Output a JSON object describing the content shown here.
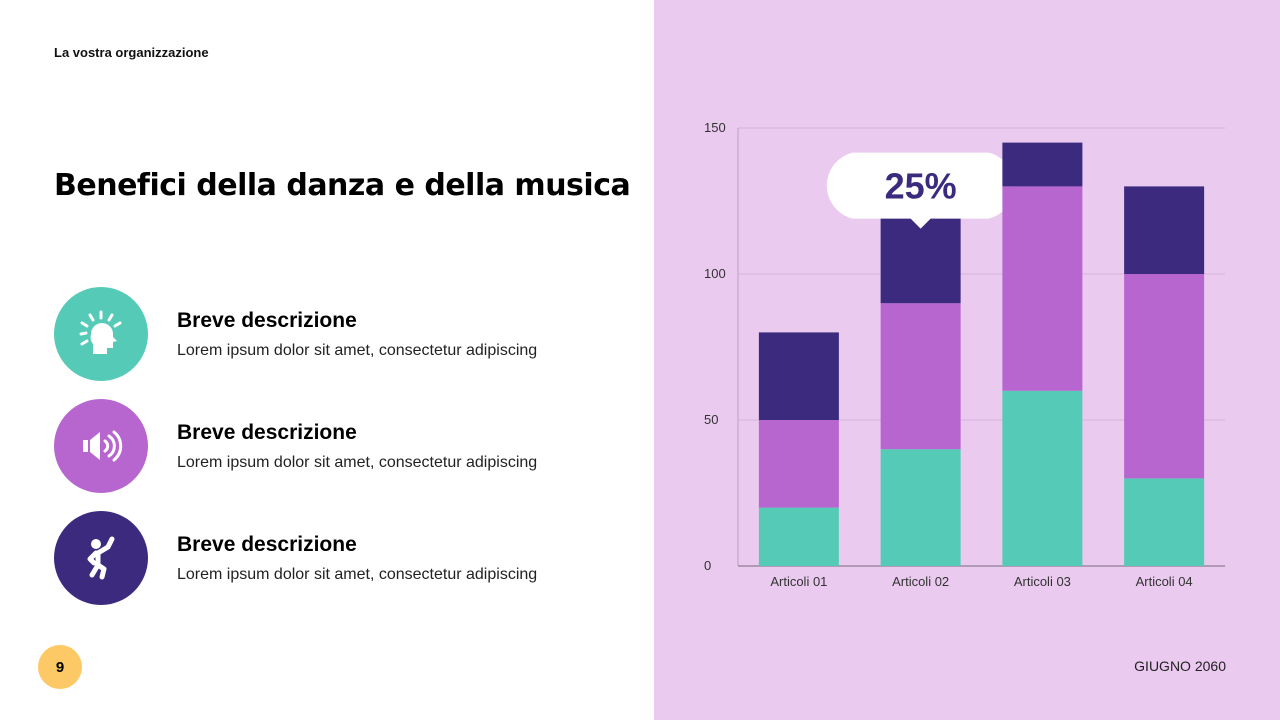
{
  "header": {
    "org": "La vostra organizzazione",
    "title": "Benefici della danza e della musica"
  },
  "items": [
    {
      "heading": "Breve descrizione",
      "text": "Lorem ipsum dolor sit amet, consectetur adipiscing",
      "icon": "head-lightbulb-icon",
      "color": "#55cbb7"
    },
    {
      "heading": "Breve descrizione",
      "text": "Lorem ipsum dolor sit amet, consectetur adipiscing",
      "icon": "speaker-icon",
      "color": "#b866cf"
    },
    {
      "heading": "Breve descrizione",
      "text": "Lorem ipsum dolor sit amet, consectetur adipiscing",
      "icon": "dancer-icon",
      "color": "#3b2a7e"
    }
  ],
  "footer": {
    "page": "9",
    "date": "GIUGNO 2060"
  },
  "chart_data": {
    "type": "bar",
    "stacked": true,
    "categories": [
      "Articoli 01",
      "Articoli 02",
      "Articoli 03",
      "Articoli 04"
    ],
    "series": [
      {
        "values": [
          20,
          40,
          60,
          30
        ],
        "color": "#55cbb7"
      },
      {
        "values": [
          30,
          50,
          70,
          70
        ],
        "color": "#b866cf"
      },
      {
        "values": [
          30,
          30,
          15,
          30
        ],
        "color": "#3b2a7e"
      }
    ],
    "ylim": [
      0,
      150
    ],
    "yticks": [
      0,
      50,
      100,
      150
    ],
    "grid": true,
    "annotation": {
      "text": "25%",
      "category": "Articoli 02"
    }
  }
}
